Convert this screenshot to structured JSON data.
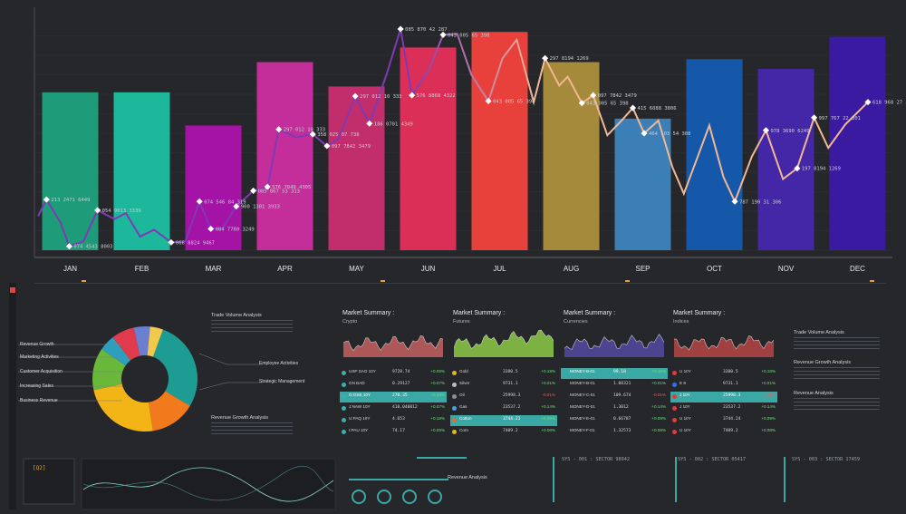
{
  "chart_data": {
    "type": "bar",
    "categories": [
      "JAN",
      "FEB",
      "MAR",
      "APR",
      "MAY",
      "JUN",
      "JUL",
      "AUG",
      "SEP",
      "OCT",
      "NOV",
      "DEC"
    ],
    "values": [
      16.2,
      16.2,
      12.8,
      19.3,
      16.8,
      20.8,
      22.4,
      19.3,
      13.5,
      19.6,
      18.6,
      21.9
    ],
    "colors": [
      "#1e9b78",
      "#1db89c",
      "#a412a6",
      "#c32e9a",
      "#c22d6c",
      "#db2f57",
      "#e8403b",
      "#a48a3a",
      "#3b7fb6",
      "#1558a9",
      "#4427a6",
      "#3a1aa0"
    ],
    "ylim": [
      0,
      24
    ],
    "line": {
      "color_start": "#7e3ab5",
      "color_end": "#f2b793",
      "points": [
        {
          "x": 0.0,
          "y": 3.5
        },
        {
          "x": 0.15,
          "y": 5.2,
          "label": "213 2471 6449"
        },
        {
          "x": 0.4,
          "y": 2.8
        },
        {
          "x": 0.55,
          "y": 0.4,
          "label": "074 4543 8003"
        },
        {
          "x": 0.8,
          "y": 0.9
        },
        {
          "x": 1.05,
          "y": 4.1,
          "label": "054 9013 3339"
        },
        {
          "x": 1.35,
          "y": 3.2
        },
        {
          "x": 1.55,
          "y": 3.8
        },
        {
          "x": 1.8,
          "y": 1.4
        },
        {
          "x": 2.05,
          "y": 2.1
        },
        {
          "x": 2.35,
          "y": 0.8,
          "label": "066 8824 9467"
        },
        {
          "x": 2.6,
          "y": 0.9
        },
        {
          "x": 2.85,
          "y": 5.0,
          "label": "074 546 84 319"
        },
        {
          "x": 3.05,
          "y": 2.2,
          "label": "084 7780 3249"
        },
        {
          "x": 3.25,
          "y": 2.2
        },
        {
          "x": 3.5,
          "y": 4.5,
          "label": "900 1301 3933"
        },
        {
          "x": 3.8,
          "y": 6.1,
          "label": "085 867 53 313"
        },
        {
          "x": 4.05,
          "y": 6.5,
          "label": "576 7849 4305"
        },
        {
          "x": 4.25,
          "y": 12.4,
          "label": "297 012 10 333"
        },
        {
          "x": 4.55,
          "y": 11.6
        },
        {
          "x": 4.85,
          "y": 11.9,
          "label": "358 025 07 738"
        },
        {
          "x": 5.1,
          "y": 10.7,
          "label": "097 7842 3479"
        },
        {
          "x": 5.3,
          "y": 11.4
        },
        {
          "x": 5.6,
          "y": 15.8,
          "label": "297 012 10 333"
        },
        {
          "x": 5.85,
          "y": 13.0,
          "label": "186 0701 4349"
        },
        {
          "x": 6.15,
          "y": 18.0
        },
        {
          "x": 6.4,
          "y": 22.7,
          "label": "085 870 42 287"
        },
        {
          "x": 6.6,
          "y": 15.9,
          "label": "576 8868 4322"
        },
        {
          "x": 6.9,
          "y": 18.5
        },
        {
          "x": 7.15,
          "y": 22.1,
          "label": "043 005 65 398"
        },
        {
          "x": 7.4,
          "y": 22.2
        },
        {
          "x": 7.65,
          "y": 18.0
        },
        {
          "x": 7.95,
          "y": 15.3,
          "label": "043 005 65 398"
        },
        {
          "x": 8.2,
          "y": 19.7
        },
        {
          "x": 8.45,
          "y": 21.6
        },
        {
          "x": 8.75,
          "y": 15.2
        },
        {
          "x": 8.95,
          "y": 19.7,
          "label": "297 8194 1269"
        },
        {
          "x": 9.2,
          "y": 16.9
        },
        {
          "x": 9.35,
          "y": 17.8
        },
        {
          "x": 9.6,
          "y": 15.1,
          "label": "043 005 65 398"
        },
        {
          "x": 9.8,
          "y": 15.9,
          "label": "097 7842 3479"
        },
        {
          "x": 10.05,
          "y": 11.8
        },
        {
          "x": 10.3,
          "y": 13.3
        },
        {
          "x": 10.5,
          "y": 14.6,
          "label": "415 6088 3806"
        },
        {
          "x": 10.7,
          "y": 12.0,
          "label": "464 103 54 308"
        },
        {
          "x": 10.95,
          "y": 13.3
        },
        {
          "x": 11.2,
          "y": 8.5
        },
        {
          "x": 11.4,
          "y": 5.8
        },
        {
          "x": 11.6,
          "y": 8.9
        },
        {
          "x": 11.85,
          "y": 12.8
        },
        {
          "x": 12.1,
          "y": 7.5
        },
        {
          "x": 12.3,
          "y": 5.0,
          "label": "787 190 31 306"
        },
        {
          "x": 12.6,
          "y": 9.6
        },
        {
          "x": 12.85,
          "y": 12.3,
          "label": "978 3690 6249"
        },
        {
          "x": 13.15,
          "y": 7.3
        },
        {
          "x": 13.4,
          "y": 8.4,
          "label": "197 8194 1269"
        },
        {
          "x": 13.7,
          "y": 13.6,
          "label": "997 767 22 801"
        },
        {
          "x": 13.95,
          "y": 10.5
        },
        {
          "x": 14.25,
          "y": 12.9
        },
        {
          "x": 14.65,
          "y": 15.2,
          "label": "618 968 27 395"
        }
      ]
    }
  },
  "markets": [
    {
      "title": "Market Summary :",
      "subtitle": "Crypto",
      "chart_color": "#d96a6a",
      "rows": [
        {
          "name": "USP SAO 10Y",
          "price": "9728.74",
          "change": "+0.09%",
          "dot": "#3ab0a8"
        },
        {
          "name": "GN BAD",
          "price": "0.29127",
          "change": "+0.07%",
          "dot": "#3ab0a8"
        },
        {
          "name": "G:GSE 10Y",
          "price": "270.35",
          "change": "+0.44%",
          "dot": "#3ab0a8",
          "hl": true
        },
        {
          "name": "J:NAW 10Y",
          "price": "410.040012",
          "change": "+0.07%",
          "dot": "#3ab0a8"
        },
        {
          "name": "U:PAQ 10Y",
          "price": "4.653",
          "change": "+0.18%",
          "dot": "#3ab0a8"
        },
        {
          "name": "I:PAU 10Y",
          "price": "74.17",
          "change": "+0.09%",
          "dot": "#3ab0a8"
        }
      ]
    },
    {
      "title": "Market Summary :",
      "subtitle": "Futures",
      "chart_color": "#9be04a",
      "rows": [
        {
          "name": "Gold",
          "price": "3380.5",
          "change": "+0.18%",
          "dot": "#e8b323"
        },
        {
          "name": "Silver",
          "price": "9731.1",
          "change": "+0.01%",
          "dot": "#b8bcc4"
        },
        {
          "name": "Oil",
          "price": "25998.3",
          "change": "-0.01%",
          "dot": "#8a8f98"
        },
        {
          "name": "Gas",
          "price": "23537.2",
          "change": "+0.14%",
          "dot": "#4aa0e0"
        },
        {
          "name": "Cotton",
          "price": "3744.21",
          "change": "+0.09%",
          "dot": "#e86a2a",
          "hl": true
        },
        {
          "name": "Corn",
          "price": "7409.2",
          "change": "+0.08%",
          "dot": "#e8b323"
        }
      ]
    },
    {
      "title": "Market Summary :",
      "subtitle": "Currencies",
      "chart_color": "#5a4fb0",
      "rows": [
        {
          "name": "MONEY-B-01",
          "price": "99.18",
          "change": "+0.18%",
          "dot": "",
          "hl": true
        },
        {
          "name": "MONEY-B-01",
          "price": "1.08321",
          "change": "+0.01%",
          "dot": ""
        },
        {
          "name": "MONEY-C-01",
          "price": "109.674",
          "change": "-0.01%",
          "dot": ""
        },
        {
          "name": "MONEY-D-01",
          "price": "1.3012",
          "change": "+0.14%",
          "dot": ""
        },
        {
          "name": "MONEY-E-01",
          "price": "0.66787",
          "change": "+0.09%",
          "dot": ""
        },
        {
          "name": "MONEY-F-01",
          "price": "1.32573",
          "change": "+0.08%",
          "dot": ""
        }
      ]
    },
    {
      "title": "Market Summary :",
      "subtitle": "Indices",
      "chart_color": "#c94a4a",
      "rows": [
        {
          "name": "U 10Y",
          "price": "3380.5",
          "change": "+0.18%",
          "dot": "#e23b3b"
        },
        {
          "name": "E 8",
          "price": "9731.1",
          "change": "+0.01%",
          "dot": "#3b6ee2"
        },
        {
          "name": "J 10Y",
          "price": "25998.3",
          "change": "-0.01%",
          "dot": "#e23b3b",
          "hl": true
        },
        {
          "name": "J 10Y",
          "price": "23537.2",
          "change": "+0.14%",
          "dot": "#e23b3b"
        },
        {
          "name": "U 10Y",
          "price": "3744.24",
          "change": "+0.09%",
          "dot": "#e23b3b"
        },
        {
          "name": "U 10Y",
          "price": "7409.2",
          "change": "+0.08%",
          "dot": "#e23b3b"
        }
      ]
    }
  ],
  "donut": {
    "slices": [
      {
        "value": 28,
        "color": "#1d9c94"
      },
      {
        "value": 14,
        "color": "#f07a1c"
      },
      {
        "value": 24,
        "color": "#f3b415"
      },
      {
        "value": 13,
        "color": "#69b83a"
      },
      {
        "value": 5,
        "color": "#2c9fbd"
      },
      {
        "value": 7,
        "color": "#e13a4c"
      },
      {
        "value": 5,
        "color": "#6b7fd0"
      },
      {
        "value": 4,
        "color": "#f2c94c"
      }
    ],
    "left_labels": [
      "Revenue Growth",
      "Marketing Activities",
      "Customer Acquisition",
      "Increasing Sales",
      "Business Revenue"
    ],
    "right_labels": [
      "Employee Activities",
      "Strategic Management"
    ]
  },
  "notes": {
    "trade_volume": "Trade Volume Analysis",
    "revenue_growth": "Revenue Growth Analysis",
    "revenue": "Revenue Analysis"
  },
  "small_tag": "[Q2]",
  "sys_labels": [
    "SYS - 001 : SECTOR 98042",
    "SYS - 002 : SECTOR 05417",
    "SYS - 003 : SECTOR 17459"
  ]
}
